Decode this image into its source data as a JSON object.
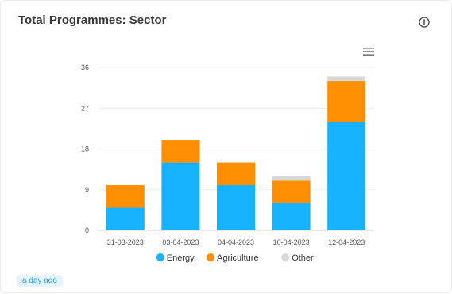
{
  "card": {
    "title": "Total Programmes: Sector",
    "updated": "a day ago"
  },
  "icons": {
    "info": "info-icon",
    "menu": "hamburger-menu-icon"
  },
  "chart_data": {
    "type": "bar",
    "stacked": true,
    "categories": [
      "31-03-2023",
      "03-04-2023",
      "04-04-2023",
      "10-04-2023",
      "12-04-2023"
    ],
    "series": [
      {
        "name": "Energy",
        "color": "#16b1ff",
        "values": [
          5,
          15,
          10,
          6,
          24
        ]
      },
      {
        "name": "Agriculture",
        "color": "#ff8f00",
        "values": [
          5,
          5,
          5,
          5,
          9
        ]
      },
      {
        "name": "Other",
        "color": "#d8d8d8",
        "values": [
          0,
          0,
          0,
          1,
          1
        ]
      }
    ],
    "yticks": [
      0,
      9,
      18,
      27,
      36
    ],
    "ylim": [
      0,
      36
    ],
    "grid": true,
    "legend": "bottom-center"
  }
}
